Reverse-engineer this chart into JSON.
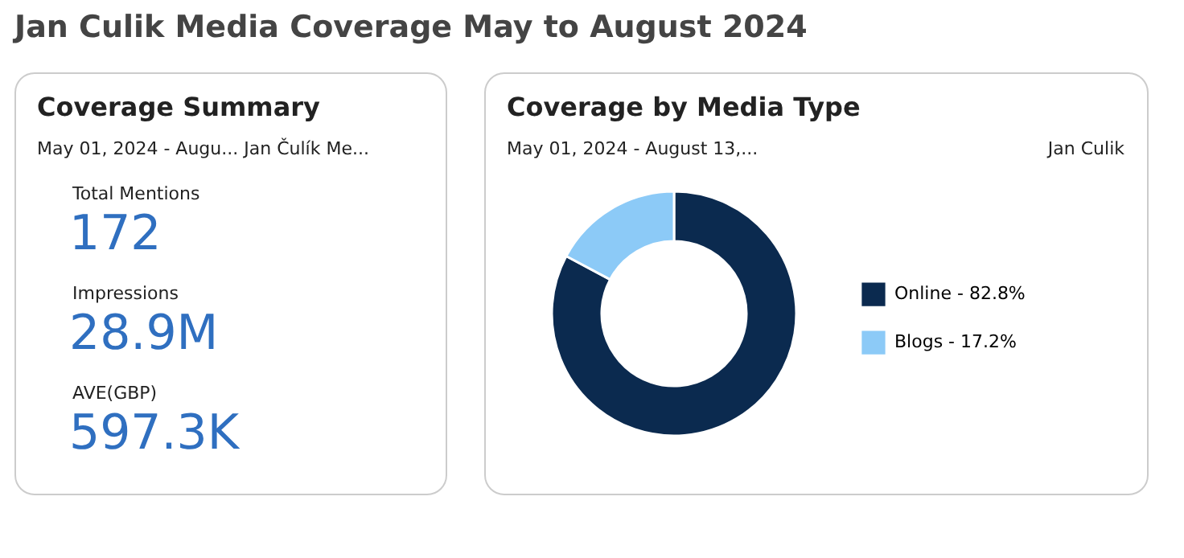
{
  "chart_data": [
    {
      "type": "other",
      "title": "Jan Culik Media Coverage May to August 2024"
    },
    {
      "type": "other",
      "title": "Coverage Summary",
      "subtitle": "May 01, 2024 - Augu... Jan Čulík Me...",
      "annotations": [
        "Total Mentions",
        "172",
        "Impressions",
        "28.9M",
        "AVE(GBP)",
        "597.3K"
      ]
    },
    {
      "type": "donut",
      "title": "Coverage by Media Type",
      "subtitle": "May 01, 2024 - August 13,...",
      "annotations": [
        "Jan Culik"
      ],
      "categories": [
        "Online -",
        "Blogs -"
      ],
      "values": [
        82.8,
        17.2
      ],
      "colors": [
        "#0b2a4f",
        "#8ccaf7"
      ],
      "value_labels": [
        "82.8%",
        "17.2%"
      ],
      "legend": "right"
    }
  ]
}
